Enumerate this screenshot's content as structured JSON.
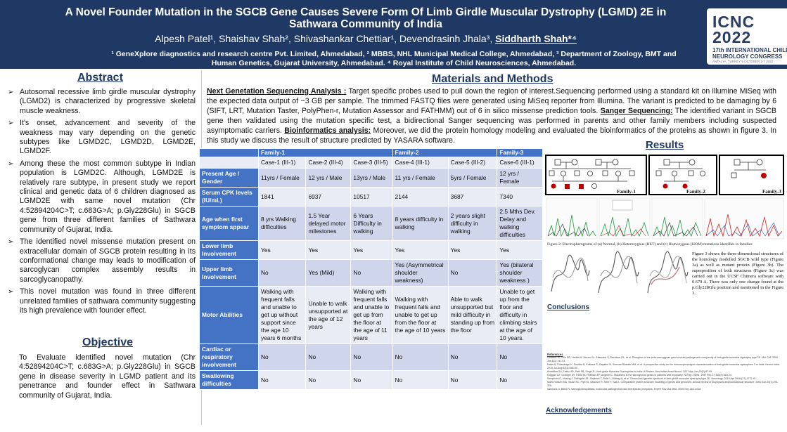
{
  "header": {
    "title": "A Novel Founder Mutation in the SGCB Gene Causes Severe Form Of Limb Girdle Muscular Dystrophy (LGMD) 2E in Sathwara Community of India",
    "authors_prefix": "Alpesh Patel¹, Shaishav Shah², Shivashankar Chettiar¹, Devendrasinh Jhala³, ",
    "presenting_author": "Siddharth Shah*⁴",
    "affiliations": "¹ GeneXplore diagnostics and research centre Pvt. Limited, Ahmedabad, ² MBBS, NHL Municipal Medical College, Ahmedabad, ³ Department of Zoology, BMT and Human Genetics, Gujarat University, Ahmedabad. ⁴ Royal Institute of Child Neurosciences, Ahmedabad."
  },
  "logo": {
    "line1": "ICNC",
    "line2": "2022",
    "line3": "17th INTERNATIONAL CHILD",
    "line4": "NEUROLOGY CONGRESS",
    "line5": "ANTALYA, TURKEY  5 OCTOBER 2-7 2022"
  },
  "abstract": {
    "heading": "Abstract",
    "bullets": [
      "Autosomal recessive limb girdle muscular dystrophy (LGMD2) is characterized by progressive skeletal muscle weakness.",
      "It's onset, advancement and severity of the weakness may vary depending on the genetic subtypes like LGMD2C, LGMD2D, LGMD2E, LGMD2F.",
      "Among these the most common subtype in Indian population is LGMD2C. Although, LGMD2E is relatively rare subtype, in present study we report clinical and genetic data of 6 children diagnosed as LGMD2E with same novel mutation (Chr 4:52894204C>T; c.683G>A; p.Gly228Glu) in SGCB gene from three different families of Sathwara community of Gujarat, India.",
      "The identified novel missense mutation present on extracellular domain of SGCB protein resulting in its conformational change may leads to modification of sarcoglycan complex assembly results in sarcoglycanopathy.",
      "This novel mutation was found in three different unrelated families of sathwara community suggesting its high prevalence with founder effect."
    ]
  },
  "objective": {
    "heading": "Objective",
    "text": "To Evaluate identified novel mutation (Chr 4:52894204C>T; c.683G>A; p.Gly228Glu) in SGCB gene in disease severity in LGMD patient and its penetrance and founder effect in Sathwara community of Gujarat, India."
  },
  "methods": {
    "heading": "Materials and Methods",
    "ngs_label": "Next Genetation Sequencing Analysis :",
    "ngs_text": " Target specific probes used to pull down the region of interest.Sequencing performed using a standard kit on illumine MiSeq with the expected data output of ~3 GB per sample. The trimmed FASTQ files were generated using MiSeq reporter from Illumina. The variant is predicted to be damaging by 6 (SIFT, LRT, Mutation Taster, PolyPhen-r, Mutation Assessor and FATHMM) out of 6 in silico missense prediction tools. ",
    "sanger_label": "Sanger Sequencing:",
    "sanger_text": " The identified variant in SGCB gene then validated using the mutation specific test, a bidirectional Sanger sequencing was performed in parents and other family members including suspected asymptomatic carriers. ",
    "bio_label": "Bioinformatics analysis:",
    "bio_text": " Moreover, we did the protein homology modeling and evaluated the bioinformatics of the proteins as shown in figure 3. In this study we discuss the result of structure predicted by YASARA software."
  },
  "table": {
    "families": [
      "Family-1",
      "Family-2",
      "Family-3"
    ],
    "cases": [
      "Case-1 (III-1)",
      "Case-2 (III-4)",
      "Case-3 (III-5)",
      "Case-4 (III-1)",
      "Case-5 (III-2)",
      "Case-6 (III-1)"
    ],
    "rows": [
      {
        "label": "Present Age / Gender",
        "cells": [
          "11yrs / Female",
          "12 yrs / Male",
          "13yrs / Male",
          "11 yrs / Female",
          "5yrs / Female",
          "12 yrs / Female"
        ]
      },
      {
        "label": "Serum CPK levels (IU/mL)",
        "cells": [
          "1841",
          "6937",
          "10517",
          "2144",
          "3687",
          "7340"
        ]
      },
      {
        "label": "Age when first symptom appear",
        "cells": [
          "8 yrs Walking difficulties",
          "1.5 Year delayed motor milestones",
          "6 Years Difficulty in walking",
          "8 years difficulty in walking",
          "2 years slight difficulty in walking",
          "2.5 Mths Dev. Delay and walking difficulties"
        ]
      },
      {
        "label": "Lower limb Involvement",
        "cells": [
          "Yes",
          "Yes",
          "Yes",
          "Yes",
          "Yes",
          "Yes"
        ]
      },
      {
        "label": "Upper limb Involvement",
        "cells": [
          "No",
          "Yes (Mild)",
          "No",
          "Yes (Asymmetrical shoulder weakness)",
          "No",
          "Yes (bilateral shoulder weakness )"
        ]
      },
      {
        "label": "Motor Abilities",
        "cells": [
          "Walking with frequent falls and unable to get up without support since the age 10 years 6 months",
          "Unable to walk unsupported at the age of 12 years",
          "Walking with frequent falls and unable to get up from the floor at the age of 11 years",
          "Walking with frequent falls and unable to get up from the floor at the age of 10 years",
          "Able to walk unsupported but mild difficulty in standing up from the floor",
          "Unable to get up from the floor and difficulty in climbing stairs at the age of 10 years."
        ]
      },
      {
        "label": "Cardiac or respiratory involvement",
        "cells": [
          "No",
          "No",
          "No",
          "No",
          "No",
          "No"
        ]
      },
      {
        "label": "Swallowing difficulties",
        "cells": [
          "No",
          "No",
          "No",
          "No",
          "No",
          "No"
        ]
      }
    ]
  },
  "results": {
    "heading": "Results",
    "fam1": "Family-1",
    "fam2": "Family-2",
    "fam3": "Family-3",
    "fig2_caption": "Figure 2: Electropherograms of (a) Normal, (b) Heterozygous (HET) and (c) Homozygous (HOM) mutations identifies in families",
    "fig3_text": "Figure 3 shows the three-dimensional structures of the homology modelled SGCB wild type (Figure 3a) as well as mutant protein (Figure 3b). The superposition of both structures (Figure 3c) was carried out in the UCSF Chimera software with 0.679 A. There was only one change found at the p.Gly228Glu position and mentioned in the Figure 3.",
    "conclusions": "Conclusions",
    "references_heading": "References",
    "references": [
      "Gorbacz M, Colo RD, Hrstka M, Moura GL, Allamand V, Davidson RL, et al. Disruption of the beta-sarcoglycan gene reveals pathogenetic complexity of limb-girdle muscular dystrophy type 2E. Mol Cell. 2000 Jan;5(1):141-51.",
      "Nalini A, Polavarapu K, Sunitha B, Kulkarni S, Gayathri N, Srinivas Bharath MM, et al. A prospective study on the immunophenotypic characterization of limb girdle muscular dystrophies 2 in India. Neurol India. 2015 Jul-Aug;63(4):548-60.",
      "Khadilkar SV, Faldu HD, Patil SB, Singh R. Limb-girdle Muscular Dystrophies in India: A Review. Ann Indian Acad Neurol. 2017 Apr-Jun;20(2):87-95.",
      "Duggan DJ, Gorospe JR, Fanin M, Hoffman EP, Angelini C. Mutations in the sarcoglycan genes in patients with myopathy. N Engl J Med. 1997 Feb 27;336(9):618-24.",
      "Semplicini C, Vissing J, Dahlqvist JR, Stojkovic T, Bello L, Witting N, et al. Clinical and genetic spectrum in limb-girdle muscular dystrophy type 2E. Neurology. 2015 Apr 28;84(17):1772-81.",
      "Martí-Rossen MA, Stuart KC, Fryer A, Sánchez R, Mele F, Sali A. Comparative protein structure modeling of genes and genomes. Annual review of biophysics and biomolecular structure. 2000 Jun;29(1):291-325.",
      "Sandona D, Betto R. Sarcoglycanopathies: molecular pathogenesis and therapeutic prospects. Expert Rev Mol Med. 2009 Sep 28;11:e28."
    ],
    "acknowledgements": "Acknowledgements"
  }
}
